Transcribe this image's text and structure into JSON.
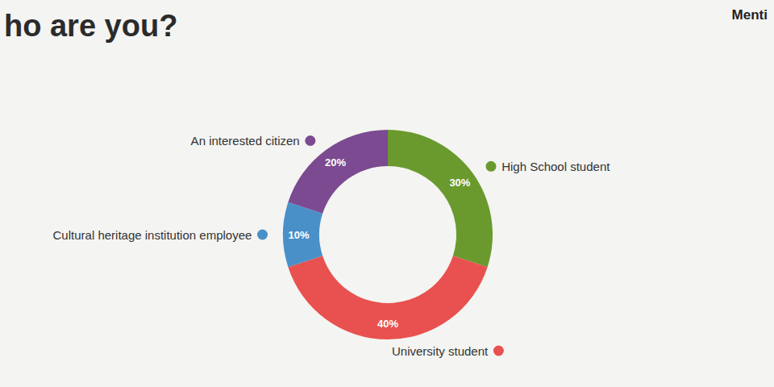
{
  "chart_data": {
    "type": "donut",
    "title": "ho are you?",
    "annotations": [
      "Menti"
    ],
    "categories": [
      "High School student",
      "University student",
      "Cultural heritage institution employee",
      "An interested citizen"
    ],
    "values": [
      30,
      40,
      10,
      20
    ],
    "value_labels": [
      "30%",
      "40%",
      "10%",
      "20%"
    ],
    "colors": [
      "#6a9a2e",
      "#e8514f",
      "#4a90c8",
      "#7b4a91"
    ],
    "data_labels": true
  }
}
